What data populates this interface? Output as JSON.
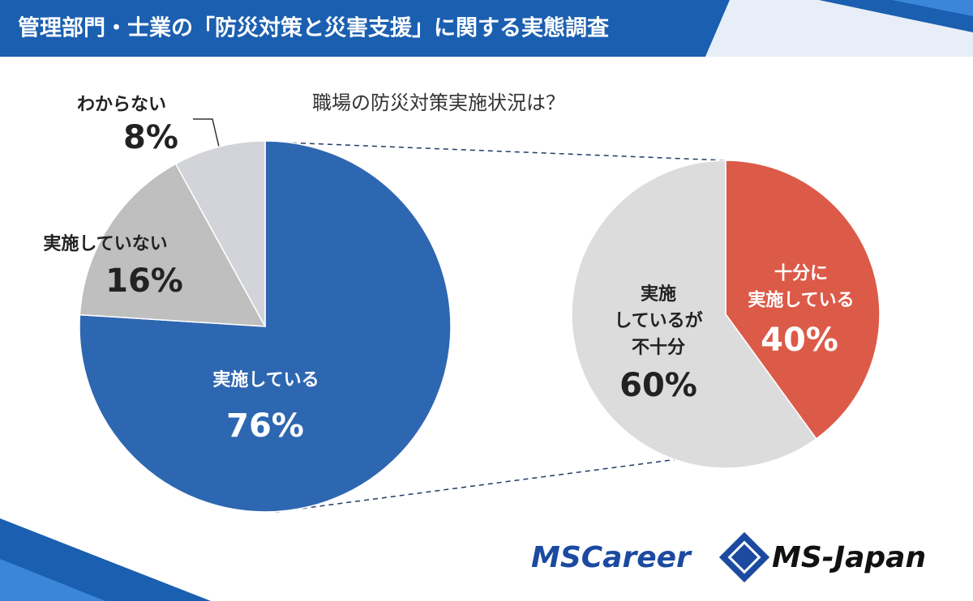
{
  "header": {
    "title": "管理部門・士業の「防災対策と災害支援」に関する実態調査"
  },
  "chart_data": [
    {
      "type": "pie",
      "title": "職場の防災対策実施状況は？",
      "categories": [
        "実施している",
        "実施していない",
        "わからない"
      ],
      "values": [
        76,
        16,
        8
      ],
      "value_labels": [
        "76%",
        "16%",
        "8%"
      ],
      "colors": [
        "#2e67b1",
        "#bfbfbf",
        "#d3d4d9"
      ]
    },
    {
      "type": "pie",
      "categories": [
        "十分に\n実施している",
        "実施\nしているが\n不十分"
      ],
      "values": [
        40,
        60
      ],
      "value_labels": [
        "40%",
        "60%"
      ],
      "colors": [
        "#dc5a48",
        "#dcdcdc"
      ]
    }
  ],
  "footer": {
    "logos": [
      "MSCareer",
      "MS-Japan"
    ]
  }
}
